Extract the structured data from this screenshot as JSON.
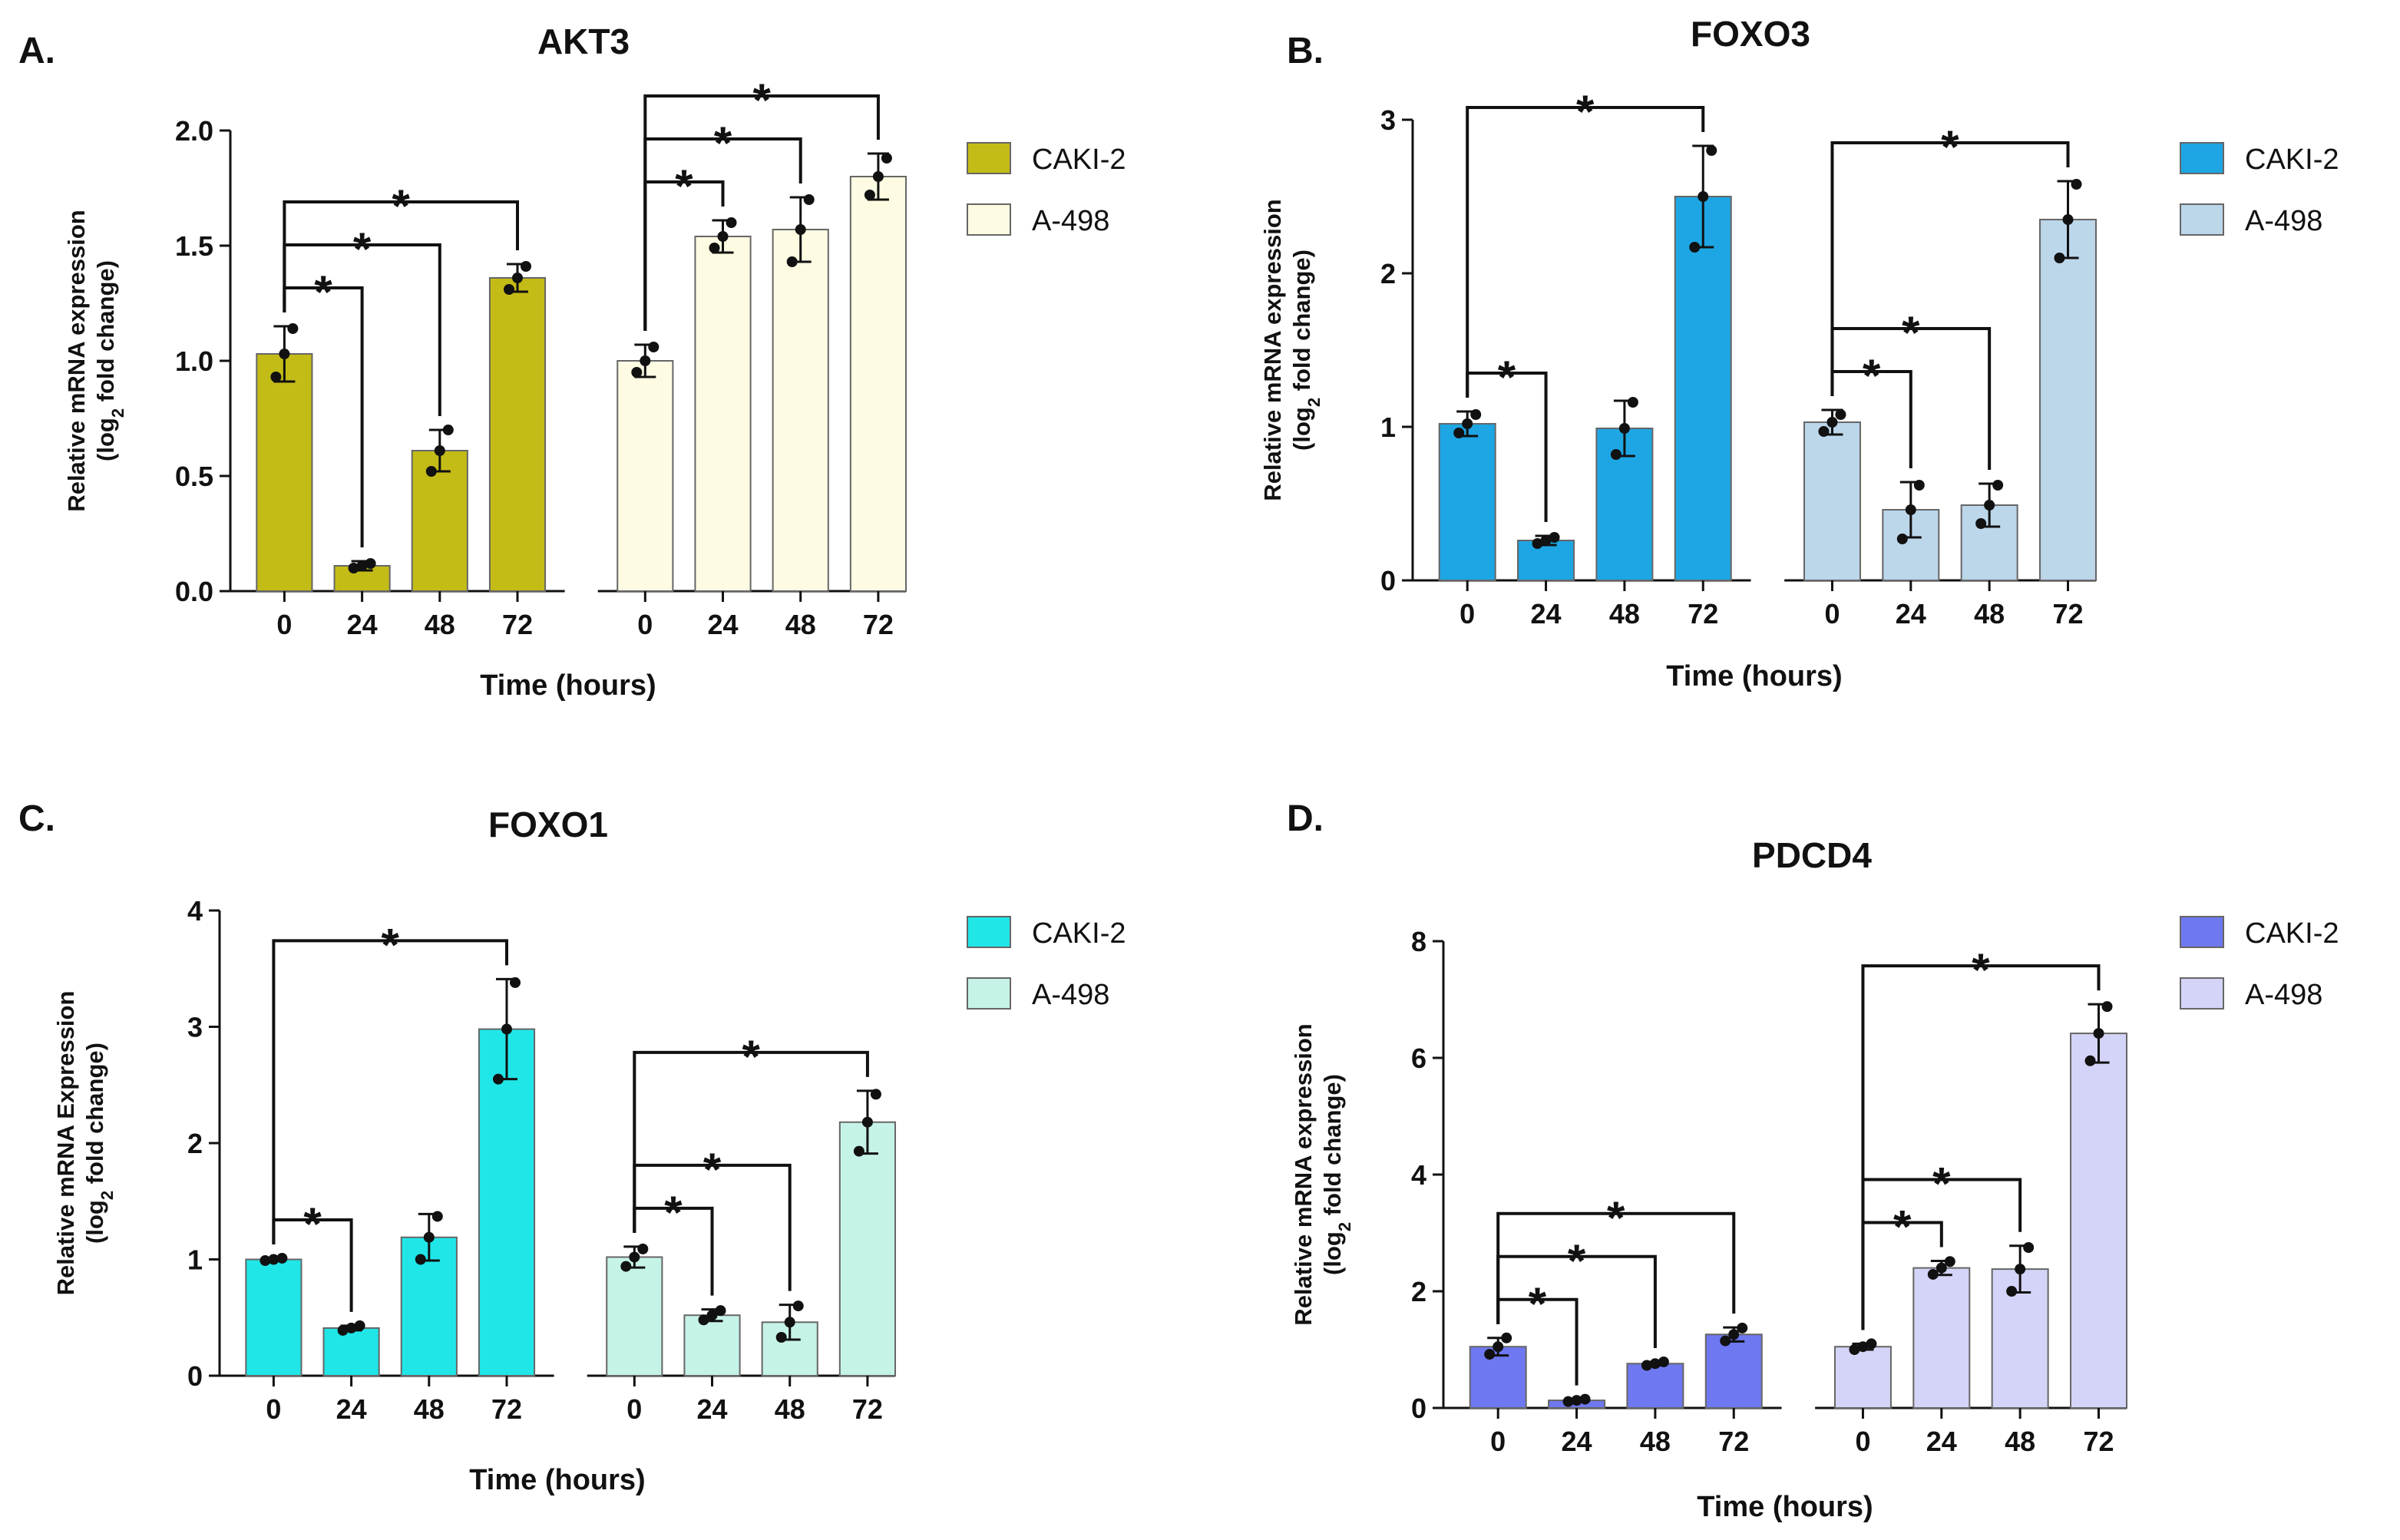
{
  "chart_data": [
    {
      "type": "bar",
      "panel": "A.",
      "title": "AKT3",
      "xlabel": "Time (hours)",
      "ylabel": "Relative mRNA expression",
      "ylabel_sub": [
        "(log",
        "2",
        " fold change)"
      ],
      "categories": [
        "0",
        "24",
        "48",
        "72"
      ],
      "ylim": [
        0,
        2
      ],
      "yticks": [
        {
          "value": 0,
          "label": "0.0"
        },
        0.5,
        {
          "value": 1,
          "label": "1.0"
        },
        1.5,
        {
          "value": 2,
          "label": "2.0"
        }
      ],
      "series": [
        {
          "name": "CAKI-2",
          "color": "#c4bc16",
          "values": [
            1.03,
            0.11,
            0.61,
            1.36
          ],
          "errors": [
            0.12,
            0.02,
            0.09,
            0.06
          ],
          "points": [
            [
              0.93,
              1.03,
              1.14
            ],
            [
              0.1,
              0.11,
              0.12
            ],
            [
              0.52,
              0.61,
              0.7
            ],
            [
              1.31,
              1.36,
              1.41
            ]
          ]
        },
        {
          "name": "A-498",
          "color": "#fdfbe2",
          "values": [
            1.0,
            1.54,
            1.57,
            1.8
          ],
          "errors": [
            0.07,
            0.07,
            0.14,
            0.1
          ],
          "points": [
            [
              0.95,
              1.0,
              1.06
            ],
            [
              1.49,
              1.54,
              1.6
            ],
            [
              1.43,
              1.57,
              1.7
            ],
            [
              1.72,
              1.8,
              1.88
            ]
          ]
        }
      ],
      "significance": [
        {
          "series": 0,
          "from": 0,
          "to": 1,
          "label": "*"
        },
        {
          "series": 0,
          "from": 0,
          "to": 2,
          "label": "*"
        },
        {
          "series": 0,
          "from": 0,
          "to": 3,
          "label": "*"
        },
        {
          "series": 1,
          "from": 0,
          "to": 1,
          "label": "*"
        },
        {
          "series": 1,
          "from": 0,
          "to": 2,
          "label": "*"
        },
        {
          "series": 1,
          "from": 0,
          "to": 3,
          "label": "*"
        }
      ]
    },
    {
      "type": "bar",
      "panel": "B.",
      "title": "FOXO3",
      "xlabel": "Time (hours)",
      "ylabel": "Relative mRNA expression",
      "ylabel_sub": [
        "(log",
        "2",
        " fold change)"
      ],
      "categories": [
        "0",
        "24",
        "48",
        "72"
      ],
      "ylim": [
        0,
        3
      ],
      "yticks": [
        0,
        1,
        2,
        3
      ],
      "series": [
        {
          "name": "CAKI-2",
          "color": "#1ea6e4",
          "values": [
            1.02,
            0.26,
            0.99,
            2.5
          ],
          "errors": [
            0.08,
            0.03,
            0.18,
            0.33
          ],
          "points": [
            [
              0.96,
              1.02,
              1.08
            ],
            [
              0.24,
              0.26,
              0.28
            ],
            [
              0.82,
              0.99,
              1.16
            ],
            [
              2.17,
              2.5,
              2.8
            ]
          ]
        },
        {
          "name": "A-498",
          "color": "#bcd6ea",
          "values": [
            1.03,
            0.46,
            0.49,
            2.35
          ],
          "errors": [
            0.08,
            0.18,
            0.14,
            0.25
          ],
          "points": [
            [
              0.97,
              1.03,
              1.08
            ],
            [
              0.27,
              0.46,
              0.62
            ],
            [
              0.37,
              0.49,
              0.62
            ],
            [
              2.1,
              2.35,
              2.58
            ]
          ]
        }
      ],
      "significance": [
        {
          "series": 0,
          "from": 0,
          "to": 1,
          "label": "*"
        },
        {
          "series": 0,
          "from": 0,
          "to": 3,
          "label": "*"
        },
        {
          "series": 1,
          "from": 0,
          "to": 1,
          "label": "*"
        },
        {
          "series": 1,
          "from": 0,
          "to": 2,
          "label": "*"
        },
        {
          "series": 1,
          "from": 0,
          "to": 3,
          "label": "*"
        }
      ]
    },
    {
      "type": "bar",
      "panel": "C.",
      "title": "FOXO1",
      "xlabel": "Time (hours)",
      "ylabel": "Relative mRNA Expression",
      "ylabel_sub": [
        "(log",
        "2",
        " fold change)"
      ],
      "categories": [
        "0",
        "24",
        "48",
        "72"
      ],
      "ylim": [
        0,
        4
      ],
      "yticks": [
        0,
        1,
        2,
        3,
        4
      ],
      "series": [
        {
          "name": "CAKI-2",
          "color": "#20e6e8",
          "values": [
            1.0,
            0.41,
            1.19,
            2.98
          ],
          "errors": [
            0.01,
            0.02,
            0.2,
            0.43
          ],
          "points": [
            [
              0.99,
              1.0,
              1.01
            ],
            [
              0.39,
              0.41,
              0.43
            ],
            [
              1.0,
              1.19,
              1.37
            ],
            [
              2.55,
              2.98,
              3.38
            ]
          ]
        },
        {
          "name": "A-498",
          "color": "#c6f3e8",
          "values": [
            1.02,
            0.52,
            0.46,
            2.18
          ],
          "errors": [
            0.09,
            0.05,
            0.15,
            0.27
          ],
          "points": [
            [
              0.94,
              1.02,
              1.09
            ],
            [
              0.48,
              0.52,
              0.56
            ],
            [
              0.33,
              0.46,
              0.6
            ],
            [
              1.93,
              2.18,
              2.42
            ]
          ]
        }
      ],
      "significance": [
        {
          "series": 0,
          "from": 0,
          "to": 1,
          "label": "*"
        },
        {
          "series": 0,
          "from": 0,
          "to": 3,
          "label": "*"
        },
        {
          "series": 1,
          "from": 0,
          "to": 1,
          "label": "*"
        },
        {
          "series": 1,
          "from": 0,
          "to": 2,
          "label": "*"
        },
        {
          "series": 1,
          "from": 0,
          "to": 3,
          "label": "*"
        }
      ]
    },
    {
      "type": "bar",
      "panel": "D.",
      "title": "PDCD4",
      "xlabel": "Time (hours)",
      "ylabel": "Relative mRNA expression",
      "ylabel_sub": [
        "(log",
        "2",
        " fold change)"
      ],
      "categories": [
        "0",
        "24",
        "48",
        "72"
      ],
      "ylim": [
        0,
        8
      ],
      "yticks": [
        0,
        2,
        4,
        6,
        8
      ],
      "series": [
        {
          "name": "CAKI-2",
          "color": "#6e78f0",
          "values": [
            1.05,
            0.13,
            0.76,
            1.26
          ],
          "errors": [
            0.15,
            0.02,
            0.03,
            0.12
          ],
          "points": [
            [
              0.92,
              1.05,
              1.2
            ],
            [
              0.11,
              0.13,
              0.15
            ],
            [
              0.73,
              0.76,
              0.79
            ],
            [
              1.15,
              1.26,
              1.37
            ]
          ]
        },
        {
          "name": "A-498",
          "color": "#d4d4f8",
          "values": [
            1.05,
            2.4,
            2.38,
            6.42
          ],
          "errors": [
            0.05,
            0.12,
            0.4,
            0.5
          ],
          "points": [
            [
              1.0,
              1.05,
              1.1
            ],
            [
              2.29,
              2.4,
              2.51
            ],
            [
              2.0,
              2.38,
              2.75
            ],
            [
              5.95,
              6.42,
              6.88
            ]
          ]
        }
      ],
      "significance": [
        {
          "series": 0,
          "from": 0,
          "to": 1,
          "label": "*"
        },
        {
          "series": 0,
          "from": 0,
          "to": 2,
          "label": "*"
        },
        {
          "series": 0,
          "from": 0,
          "to": 3,
          "label": "*"
        },
        {
          "series": 1,
          "from": 0,
          "to": 1,
          "label": "*"
        },
        {
          "series": 1,
          "from": 0,
          "to": 2,
          "label": "*"
        },
        {
          "series": 1,
          "from": 0,
          "to": 3,
          "label": "*"
        }
      ]
    }
  ]
}
